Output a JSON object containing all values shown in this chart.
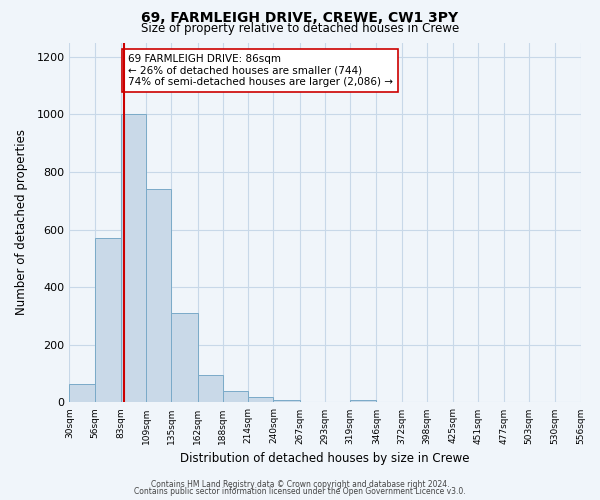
{
  "title": "69, FARMLEIGH DRIVE, CREWE, CW1 3PY",
  "subtitle": "Size of property relative to detached houses in Crewe",
  "xlabel": "Distribution of detached houses by size in Crewe",
  "ylabel": "Number of detached properties",
  "bar_values": [
    65,
    570,
    1000,
    740,
    310,
    95,
    40,
    20,
    10,
    0,
    0,
    10,
    0,
    0,
    0,
    0,
    0,
    0,
    0,
    0
  ],
  "bin_edges": [
    30,
    56,
    83,
    109,
    135,
    162,
    188,
    214,
    240,
    267,
    293,
    319,
    346,
    372,
    398,
    425,
    451,
    477,
    503,
    530,
    556
  ],
  "tick_labels": [
    "30sqm",
    "56sqm",
    "83sqm",
    "109sqm",
    "135sqm",
    "162sqm",
    "188sqm",
    "214sqm",
    "240sqm",
    "267sqm",
    "293sqm",
    "319sqm",
    "346sqm",
    "372sqm",
    "398sqm",
    "425sqm",
    "451sqm",
    "477sqm",
    "503sqm",
    "530sqm",
    "556sqm"
  ],
  "bar_color": "#c9d9e8",
  "bar_edge_color": "#7aaac8",
  "vline_x": 86,
  "vline_color": "#cc0000",
  "ylim": [
    0,
    1250
  ],
  "yticks": [
    0,
    200,
    400,
    600,
    800,
    1000,
    1200
  ],
  "annotation_text": "69 FARMLEIGH DRIVE: 86sqm\n← 26% of detached houses are smaller (744)\n74% of semi-detached houses are larger (2,086) →",
  "annotation_box_edge": "#cc0000",
  "footer_line1": "Contains HM Land Registry data © Crown copyright and database right 2024.",
  "footer_line2": "Contains public sector information licensed under the Open Government Licence v3.0.",
  "bg_color": "#f0f5fa",
  "grid_color": "#c8d8e8"
}
